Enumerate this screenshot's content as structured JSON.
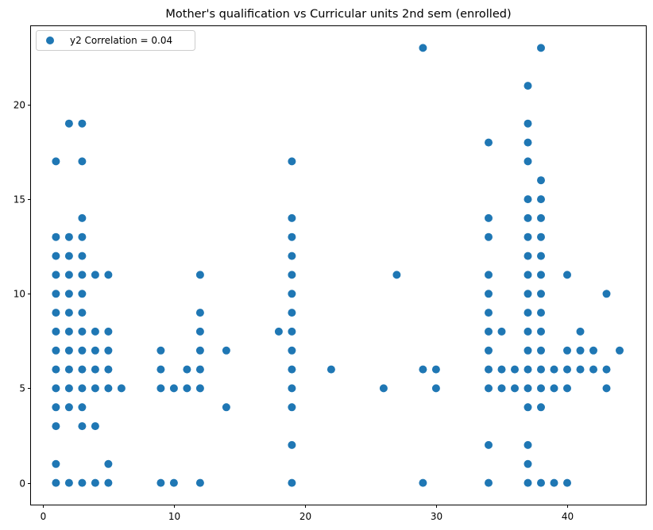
{
  "chart_data": {
    "type": "scatter",
    "title": "Mother's qualification vs Curricular units 2nd sem (enrolled)",
    "xlabel": "",
    "ylabel": "",
    "xlim": [
      -0.9,
      46.0
    ],
    "ylim": [
      -1.15,
      24.15
    ],
    "xticks": [
      0,
      10,
      20,
      30,
      40
    ],
    "yticks": [
      0,
      5,
      10,
      15,
      20
    ],
    "grid": false,
    "legend": {
      "position": "top-left",
      "entries": [
        "y2 Correlation = 0.04"
      ]
    },
    "colors": {
      "marker": "#1f77b4",
      "axes": "#000000",
      "background": "#ffffff"
    },
    "series": [
      {
        "name": "y2 Correlation = 0.04",
        "points": [
          [
            1,
            0
          ],
          [
            1,
            1
          ],
          [
            1,
            3
          ],
          [
            1,
            4
          ],
          [
            1,
            5
          ],
          [
            1,
            6
          ],
          [
            1,
            7
          ],
          [
            1,
            8
          ],
          [
            1,
            9
          ],
          [
            1,
            10
          ],
          [
            1,
            11
          ],
          [
            1,
            12
          ],
          [
            1,
            13
          ],
          [
            1,
            17
          ],
          [
            2,
            0
          ],
          [
            2,
            4
          ],
          [
            2,
            5
          ],
          [
            2,
            6
          ],
          [
            2,
            7
          ],
          [
            2,
            8
          ],
          [
            2,
            9
          ],
          [
            2,
            10
          ],
          [
            2,
            11
          ],
          [
            2,
            12
          ],
          [
            2,
            13
          ],
          [
            2,
            19
          ],
          [
            3,
            0
          ],
          [
            3,
            3
          ],
          [
            3,
            4
          ],
          [
            3,
            5
          ],
          [
            3,
            6
          ],
          [
            3,
            7
          ],
          [
            3,
            8
          ],
          [
            3,
            9
          ],
          [
            3,
            10
          ],
          [
            3,
            11
          ],
          [
            3,
            12
          ],
          [
            3,
            13
          ],
          [
            3,
            14
          ],
          [
            3,
            17
          ],
          [
            3,
            19
          ],
          [
            4,
            0
          ],
          [
            4,
            3
          ],
          [
            4,
            5
          ],
          [
            4,
            6
          ],
          [
            4,
            7
          ],
          [
            4,
            8
          ],
          [
            4,
            11
          ],
          [
            5,
            0
          ],
          [
            5,
            1
          ],
          [
            5,
            5
          ],
          [
            5,
            6
          ],
          [
            5,
            7
          ],
          [
            5,
            8
          ],
          [
            5,
            11
          ],
          [
            6,
            5
          ],
          [
            9,
            0
          ],
          [
            9,
            5
          ],
          [
            9,
            6
          ],
          [
            9,
            7
          ],
          [
            10,
            0
          ],
          [
            10,
            5
          ],
          [
            11,
            5
          ],
          [
            11,
            6
          ],
          [
            12,
            0
          ],
          [
            12,
            5
          ],
          [
            12,
            6
          ],
          [
            12,
            7
          ],
          [
            12,
            8
          ],
          [
            12,
            9
          ],
          [
            12,
            11
          ],
          [
            14,
            4
          ],
          [
            14,
            7
          ],
          [
            18,
            8
          ],
          [
            19,
            0
          ],
          [
            19,
            2
          ],
          [
            19,
            4
          ],
          [
            19,
            5
          ],
          [
            19,
            6
          ],
          [
            19,
            7
          ],
          [
            19,
            8
          ],
          [
            19,
            9
          ],
          [
            19,
            10
          ],
          [
            19,
            11
          ],
          [
            19,
            12
          ],
          [
            19,
            13
          ],
          [
            19,
            14
          ],
          [
            19,
            17
          ],
          [
            22,
            6
          ],
          [
            26,
            5
          ],
          [
            27,
            11
          ],
          [
            29,
            0
          ],
          [
            29,
            6
          ],
          [
            29,
            23
          ],
          [
            30,
            5
          ],
          [
            30,
            6
          ],
          [
            34,
            0
          ],
          [
            34,
            2
          ],
          [
            34,
            5
          ],
          [
            34,
            6
          ],
          [
            34,
            7
          ],
          [
            34,
            8
          ],
          [
            34,
            9
          ],
          [
            34,
            10
          ],
          [
            34,
            11
          ],
          [
            34,
            13
          ],
          [
            34,
            14
          ],
          [
            34,
            18
          ],
          [
            35,
            5
          ],
          [
            35,
            6
          ],
          [
            35,
            8
          ],
          [
            36,
            5
          ],
          [
            36,
            6
          ],
          [
            37,
            0
          ],
          [
            37,
            1
          ],
          [
            37,
            2
          ],
          [
            37,
            4
          ],
          [
            37,
            5
          ],
          [
            37,
            6
          ],
          [
            37,
            7
          ],
          [
            37,
            8
          ],
          [
            37,
            9
          ],
          [
            37,
            10
          ],
          [
            37,
            11
          ],
          [
            37,
            12
          ],
          [
            37,
            13
          ],
          [
            37,
            14
          ],
          [
            37,
            15
          ],
          [
            37,
            17
          ],
          [
            37,
            18
          ],
          [
            37,
            19
          ],
          [
            37,
            21
          ],
          [
            38,
            0
          ],
          [
            38,
            4
          ],
          [
            38,
            5
          ],
          [
            38,
            6
          ],
          [
            38,
            7
          ],
          [
            38,
            8
          ],
          [
            38,
            9
          ],
          [
            38,
            10
          ],
          [
            38,
            11
          ],
          [
            38,
            12
          ],
          [
            38,
            13
          ],
          [
            38,
            14
          ],
          [
            38,
            15
          ],
          [
            38,
            16
          ],
          [
            38,
            23
          ],
          [
            39,
            0
          ],
          [
            39,
            5
          ],
          [
            39,
            6
          ],
          [
            40,
            0
          ],
          [
            40,
            5
          ],
          [
            40,
            6
          ],
          [
            40,
            7
          ],
          [
            40,
            11
          ],
          [
            41,
            6
          ],
          [
            41,
            7
          ],
          [
            41,
            8
          ],
          [
            42,
            6
          ],
          [
            42,
            7
          ],
          [
            43,
            5
          ],
          [
            43,
            6
          ],
          [
            43,
            10
          ],
          [
            44,
            7
          ]
        ]
      }
    ]
  }
}
